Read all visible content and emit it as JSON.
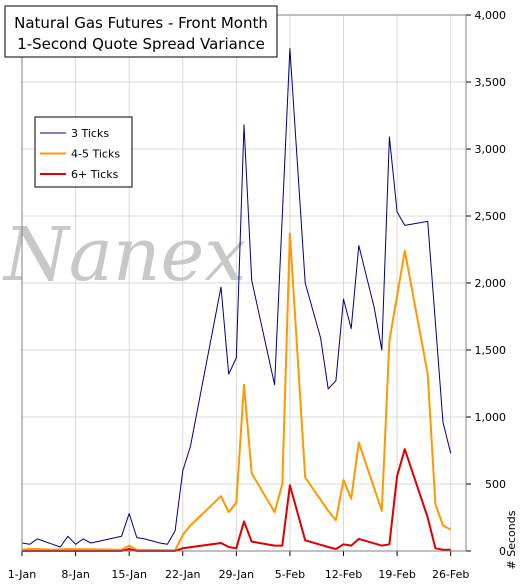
{
  "chart_data": {
    "type": "line",
    "title": "Natural Gas Futures - Front Month",
    "subtitle": "1-Second Quote Spread Variance",
    "watermark": "Nanex",
    "ylabel": "# Seconds",
    "ylim": [
      0,
      4000
    ],
    "y_ticks": [
      0,
      500,
      1000,
      1500,
      2000,
      2500,
      3000,
      3500,
      4000
    ],
    "y_tick_labels": [
      "0",
      "500",
      "1,000",
      "1,500",
      "2,000",
      "2,500",
      "3,000",
      "3,500",
      "4,000"
    ],
    "y_axis_side": "right",
    "x_tick_labels": [
      "1-Jan",
      "8-Jan",
      "15-Jan",
      "22-Jan",
      "29-Jan",
      "5-Feb",
      "12-Feb",
      "19-Feb",
      "26-Feb"
    ],
    "x_tick_days": [
      1,
      8,
      15,
      22,
      29,
      36,
      43,
      50,
      57
    ],
    "x_range_days": [
      1,
      59
    ],
    "grid": true,
    "legend_position": "left-middle",
    "series": [
      {
        "name": "3 Ticks",
        "color": "#000080",
        "points": [
          [
            1,
            60
          ],
          [
            2,
            50
          ],
          [
            3,
            90
          ],
          [
            5,
            50
          ],
          [
            6,
            30
          ],
          [
            7,
            110
          ],
          [
            8,
            50
          ],
          [
            9,
            90
          ],
          [
            10,
            60
          ],
          [
            14,
            110
          ],
          [
            15,
            280
          ],
          [
            16,
            100
          ],
          [
            17,
            90
          ],
          [
            19,
            60
          ],
          [
            20,
            50
          ],
          [
            21,
            150
          ],
          [
            22,
            600
          ],
          [
            23,
            780
          ],
          [
            27,
            1970
          ],
          [
            28,
            1320
          ],
          [
            29,
            1440
          ],
          [
            30,
            3180
          ],
          [
            31,
            2020
          ],
          [
            34,
            1240
          ],
          [
            36,
            3750
          ],
          [
            38,
            2000
          ],
          [
            40,
            1590
          ],
          [
            41,
            1210
          ],
          [
            42,
            1270
          ],
          [
            43,
            1880
          ],
          [
            44,
            1660
          ],
          [
            45,
            2280
          ],
          [
            47,
            1820
          ],
          [
            48,
            1500
          ],
          [
            49,
            3090
          ],
          [
            50,
            2530
          ],
          [
            51,
            2430
          ],
          [
            54,
            2460
          ],
          [
            56,
            960
          ],
          [
            57,
            730
          ]
        ]
      },
      {
        "name": "4-5 Ticks",
        "color": "#ff9900",
        "points": [
          [
            1,
            10
          ],
          [
            2,
            15
          ],
          [
            3,
            15
          ],
          [
            5,
            10
          ],
          [
            7,
            15
          ],
          [
            14,
            10
          ],
          [
            15,
            40
          ],
          [
            16,
            10
          ],
          [
            21,
            5
          ],
          [
            22,
            120
          ],
          [
            23,
            190
          ],
          [
            27,
            410
          ],
          [
            28,
            290
          ],
          [
            29,
            360
          ],
          [
            30,
            1240
          ],
          [
            31,
            580
          ],
          [
            34,
            290
          ],
          [
            35,
            500
          ],
          [
            36,
            2370
          ],
          [
            38,
            550
          ],
          [
            41,
            300
          ],
          [
            42,
            230
          ],
          [
            43,
            530
          ],
          [
            44,
            390
          ],
          [
            45,
            810
          ],
          [
            48,
            300
          ],
          [
            49,
            1570
          ],
          [
            51,
            2240
          ],
          [
            54,
            1320
          ],
          [
            55,
            350
          ],
          [
            56,
            190
          ],
          [
            57,
            160
          ]
        ]
      },
      {
        "name": "6+ Ticks",
        "color": "#dd0000",
        "points": [
          [
            1,
            0
          ],
          [
            14,
            0
          ],
          [
            15,
            15
          ],
          [
            16,
            0
          ],
          [
            21,
            0
          ],
          [
            22,
            20
          ],
          [
            27,
            60
          ],
          [
            28,
            30
          ],
          [
            29,
            20
          ],
          [
            30,
            220
          ],
          [
            31,
            70
          ],
          [
            34,
            40
          ],
          [
            35,
            40
          ],
          [
            36,
            490
          ],
          [
            38,
            80
          ],
          [
            41,
            30
          ],
          [
            42,
            15
          ],
          [
            43,
            50
          ],
          [
            44,
            40
          ],
          [
            45,
            90
          ],
          [
            48,
            40
          ],
          [
            49,
            50
          ],
          [
            50,
            560
          ],
          [
            51,
            760
          ],
          [
            54,
            250
          ],
          [
            55,
            20
          ],
          [
            56,
            10
          ],
          [
            57,
            10
          ]
        ]
      }
    ]
  }
}
